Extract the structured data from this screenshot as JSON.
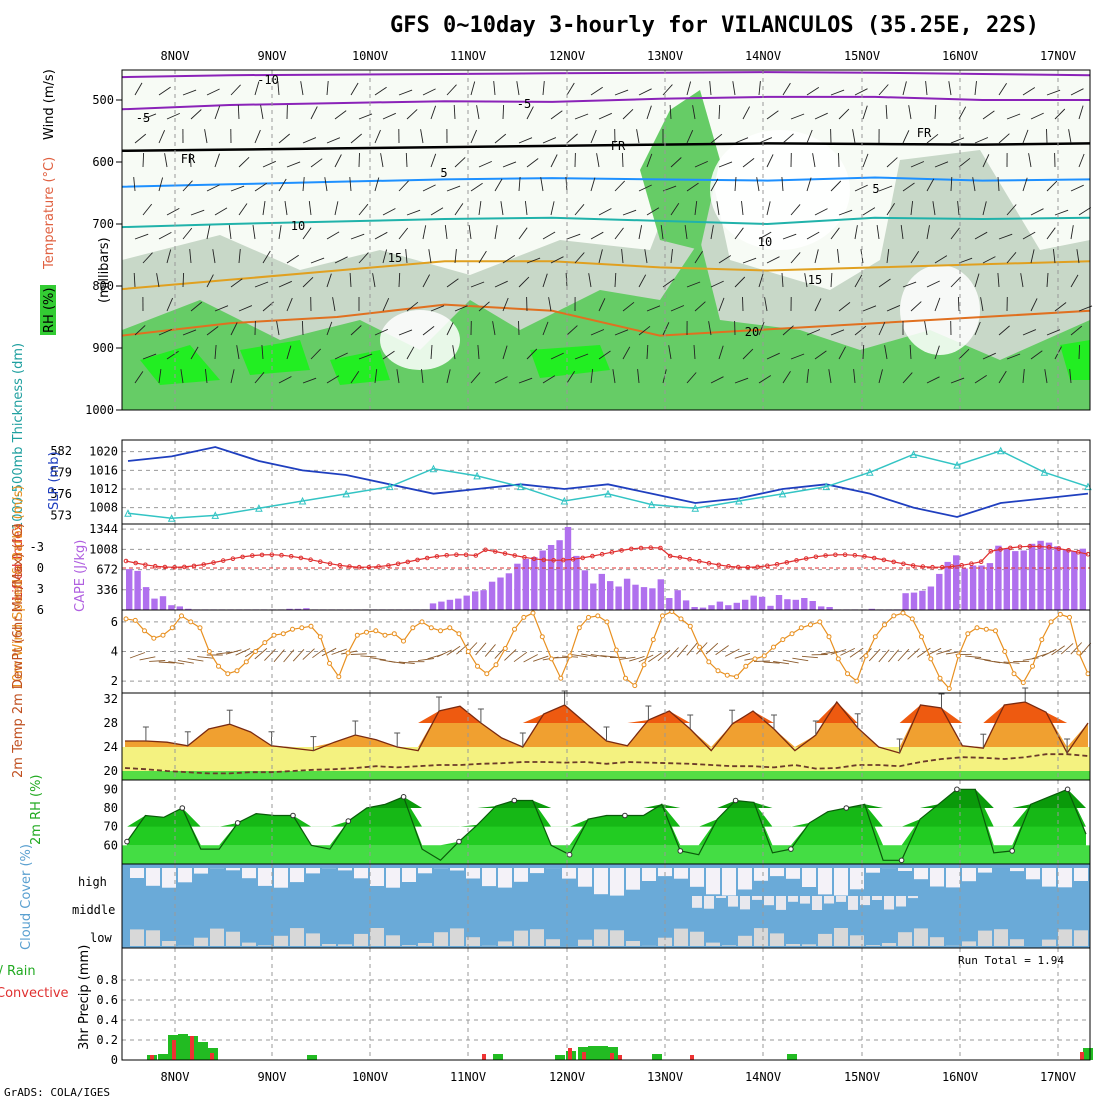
{
  "title": "GFS 0~10day 3-hourly for VILANCULOS (35.25E, 22S)",
  "credit": "GrADS: COLA/IGES",
  "run_total_label": "Run Total = 1.94",
  "chart_data": [
    {
      "type": "area",
      "panel": "upper-air",
      "x_ticks": [
        "8NOV",
        "9NOV",
        "10NOV",
        "11NOV",
        "12NOV",
        "13NOV",
        "14NOV",
        "15NOV",
        "16NOV",
        "17NOV"
      ],
      "y_ticks": [
        "500",
        "600",
        "700",
        "800",
        "900",
        "1000"
      ],
      "ylabel": "(millibars)",
      "legend": [
        "RH (%)",
        "Temperature (°C)",
        "Wind (m/s)"
      ],
      "isotherm_labels": [
        "-10",
        "-5",
        "FR",
        "5",
        "10",
        "15",
        "20"
      ],
      "isotherms": [
        {
          "name": "-10",
          "color": "#8a22b8",
          "p": [
            463,
            460,
            459,
            458,
            457,
            456,
            455,
            456,
            458,
            460
          ]
        },
        {
          "name": "-5",
          "color": "#8a22b8",
          "p": [
            515,
            508,
            505,
            502,
            503,
            498,
            495,
            495,
            500,
            500
          ]
        },
        {
          "name": "FR",
          "color": "#000000",
          "p": [
            582,
            580,
            578,
            576,
            574,
            572,
            570,
            571,
            572,
            570
          ]
        },
        {
          "name": "5",
          "color": "#1e90ff",
          "p": [
            640,
            636,
            632,
            628,
            626,
            628,
            630,
            625,
            630,
            628
          ]
        },
        {
          "name": "10",
          "color": "#20b2aa",
          "p": [
            705,
            700,
            696,
            692,
            690,
            695,
            700,
            690,
            692,
            690
          ]
        },
        {
          "name": "15",
          "color": "#e0a020",
          "p": [
            805,
            790,
            775,
            760,
            760,
            770,
            775,
            770,
            765,
            760
          ]
        },
        {
          "name": "20",
          "color": "#e07020",
          "p": [
            880,
            860,
            850,
            830,
            840,
            880,
            870,
            860,
            850,
            840
          ]
        }
      ]
    },
    {
      "type": "line",
      "panel": "thickness-slp",
      "ylabel_left": "1000-500mb Thickness (dm)",
      "ylabel_right": "SLP (mb)",
      "thickness_ticks": [
        "573",
        "576",
        "579",
        "582"
      ],
      "slp_ticks": [
        "1008",
        "1012",
        "1016",
        "1020"
      ],
      "series": [
        {
          "name": "SLP",
          "color": "#1f3fbf",
          "values": [
            1018,
            1019,
            1021,
            1018,
            1016,
            1015,
            1013,
            1011,
            1012,
            1013,
            1012,
            1013,
            1011,
            1009,
            1010,
            1012,
            1013,
            1011,
            1008,
            1006,
            1009,
            1010,
            1011
          ]
        },
        {
          "name": "Thickness",
          "color": "#33c4c4",
          "values": [
            573.3,
            572.6,
            573.0,
            574.0,
            575.0,
            576.0,
            577.0,
            579.5,
            578.5,
            577.0,
            575.0,
            576.0,
            574.5,
            574.0,
            575.0,
            576.0,
            577.0,
            579.0,
            581.5,
            580.0,
            582.0,
            579.0,
            577.0
          ]
        }
      ]
    },
    {
      "type": "bar",
      "panel": "lifted-index-cape",
      "ylabel_left": "Lifted Index",
      "ylabel_right": "CAPE (J/kg)",
      "li_ticks": [
        "-3",
        "0",
        "3",
        "6"
      ],
      "cape_ticks": [
        "336",
        "672",
        "1008",
        "1344"
      ],
      "cape_values": [
        680,
        650,
        380,
        190,
        230,
        80,
        60,
        20,
        10,
        10,
        10,
        10,
        10,
        10,
        10,
        10,
        10,
        10,
        10,
        20,
        20,
        30,
        10,
        10,
        10,
        10,
        10,
        10,
        10,
        10,
        10,
        10,
        10,
        10,
        10,
        10,
        110,
        140,
        170,
        190,
        240,
        310,
        330,
        470,
        540,
        610,
        770,
        850,
        880,
        990,
        1080,
        1160,
        1380,
        900,
        660,
        440,
        600,
        480,
        390,
        520,
        420,
        380,
        360,
        510,
        200,
        330,
        160,
        50,
        40,
        80,
        140,
        80,
        120,
        170,
        240,
        220,
        70,
        250,
        180,
        170,
        200,
        150,
        60,
        50,
        10,
        10,
        10,
        10,
        20,
        10,
        10,
        10,
        280,
        290,
        320,
        390,
        600,
        800,
        910,
        690,
        740,
        740,
        780,
        1070,
        1020,
        980,
        990,
        1100,
        1150,
        1120,
        1060,
        1000,
        980,
        1020
      ]
    },
    {
      "type": "line",
      "panel": "wind-10m",
      "ylabel": "10m Wind Speed & Barbs (m/s)",
      "y_ticks": [
        "2",
        "4",
        "6"
      ],
      "ylim": [
        1.2,
        6.8
      ],
      "values": [
        6.2,
        6.1,
        5.4,
        4.9,
        5.1,
        5.6,
        6.4,
        6.0,
        5.6,
        4.0,
        3.0,
        2.5,
        2.7,
        3.3,
        4.0,
        4.6,
        5.1,
        5.2,
        5.5,
        5.6,
        5.7,
        5.0,
        3.2,
        2.3,
        3.9,
        5.1,
        5.3,
        5.4,
        5.1,
        5.2,
        4.7,
        5.6,
        6.0,
        5.6,
        5.4,
        5.6,
        5.2,
        4.0,
        3.0,
        2.5,
        3.1,
        4.2,
        5.5,
        6.3,
        6.6,
        5.0,
        3.5,
        2.2,
        3.7,
        5.6,
        6.3,
        6.4,
        6.0,
        4.1,
        2.2,
        1.7,
        3.1,
        4.8,
        6.4,
        6.7,
        6.2,
        5.7,
        4.3,
        3.3,
        2.7,
        2.4,
        2.3,
        3.0,
        3.5,
        3.7,
        4.3,
        4.8,
        5.2,
        5.6,
        5.8,
        6.0,
        5.0,
        3.5,
        2.5,
        2.0,
        3.7,
        5.0,
        5.8,
        6.4,
        6.6,
        6.2,
        5.0,
        3.5,
        2.2,
        1.5,
        3.7,
        5.2,
        5.6,
        5.5,
        5.4,
        4.0,
        2.5,
        1.9,
        3.0,
        4.8,
        6.0,
        6.5,
        6.3,
        3.9,
        2.5
      ]
    },
    {
      "type": "area",
      "panel": "temperature-2m",
      "ylabel": "2m Temp 2m DewPt (6hr Min/Max) (°C)",
      "y_ticks": [
        "20",
        "24",
        "28",
        "32"
      ],
      "ylim": [
        18.5,
        33
      ],
      "temp": [
        25.0,
        25.0,
        24.8,
        24.2,
        27.0,
        27.8,
        26.5,
        24.2,
        23.8,
        23.4,
        24.8,
        26.0,
        25.2,
        24.0,
        23.4,
        30.0,
        30.8,
        28.0,
        25.5,
        24.0,
        29.5,
        31.0,
        28.0,
        25.0,
        24.2,
        28.5,
        30.0,
        27.0,
        23.4,
        27.8,
        30.0,
        27.0,
        23.4,
        26.0,
        31.5,
        27.2,
        24.0,
        23.0,
        31.0,
        30.5,
        24.2,
        23.8,
        31.0,
        31.5,
        29.8,
        23.0,
        28.0
      ],
      "dewpoint": [
        20.5,
        20.3,
        20.0,
        19.8,
        19.6,
        19.6,
        19.8,
        19.8,
        20.0,
        20.2,
        20.3,
        20.5,
        20.8,
        20.6,
        20.8,
        21.0,
        21.0,
        21.2,
        21.3,
        21.5,
        21.5,
        21.4,
        21.5,
        21.2,
        21.5,
        21.4,
        21.3,
        21.2,
        21.0,
        20.8,
        20.8,
        20.6,
        21.0,
        20.4,
        20.5,
        21.0,
        21.0,
        20.8,
        21.5,
        22.0,
        22.3,
        22.2,
        22.0,
        22.3,
        22.8,
        22.8,
        22.5
      ]
    },
    {
      "type": "area",
      "panel": "rh-2m",
      "ylabel": "2m RH (%)",
      "y_ticks": [
        "60",
        "70",
        "80",
        "90"
      ],
      "ylim": [
        50,
        95
      ],
      "values": [
        62,
        76,
        75,
        80,
        58,
        58,
        72,
        77,
        76,
        76,
        60,
        58,
        73,
        80,
        82,
        86,
        58,
        52,
        62,
        71,
        81,
        84,
        84,
        60,
        55,
        74,
        76,
        76,
        76,
        82,
        57,
        55,
        74,
        84,
        83,
        56,
        58,
        72,
        78,
        80,
        82,
        52,
        52,
        74,
        82,
        90,
        90,
        56,
        57,
        82,
        86,
        90,
        66
      ]
    },
    {
      "type": "heatmap",
      "panel": "cloud-cover",
      "ylabel": "Cloud Cover (%)",
      "levels": [
        "high",
        "middle",
        "low"
      ]
    },
    {
      "type": "bar",
      "panel": "precip",
      "ylabel": "3hr Precip (mm)",
      "legend": [
        "Total / Rain",
        "Convective"
      ],
      "y_ticks": [
        "0",
        "0.2",
        "0.4",
        "0.6",
        "0.8"
      ],
      "ylim": [
        0,
        1.0
      ],
      "run_total": 1.94,
      "total": [
        [
          147,
          0.05
        ],
        [
          158,
          0.06
        ],
        [
          168,
          0.25
        ],
        [
          178,
          0.26
        ],
        [
          188,
          0.24
        ],
        [
          198,
          0.18
        ],
        [
          208,
          0.12
        ],
        [
          307,
          0.05
        ],
        [
          493,
          0.06
        ],
        [
          555,
          0.05
        ],
        [
          566,
          0.09
        ],
        [
          578,
          0.13
        ],
        [
          588,
          0.14
        ],
        [
          598,
          0.14
        ],
        [
          608,
          0.13
        ],
        [
          652,
          0.06
        ],
        [
          787,
          0.06
        ],
        [
          1083,
          0.12
        ]
      ],
      "convective": [
        [
          150,
          0.05
        ],
        [
          172,
          0.2
        ],
        [
          190,
          0.24
        ],
        [
          210,
          0.07
        ],
        [
          482,
          0.06
        ],
        [
          568,
          0.12
        ],
        [
          582,
          0.08
        ],
        [
          610,
          0.07
        ],
        [
          618,
          0.05
        ],
        [
          690,
          0.05
        ],
        [
          1080,
          0.08
        ]
      ]
    }
  ]
}
